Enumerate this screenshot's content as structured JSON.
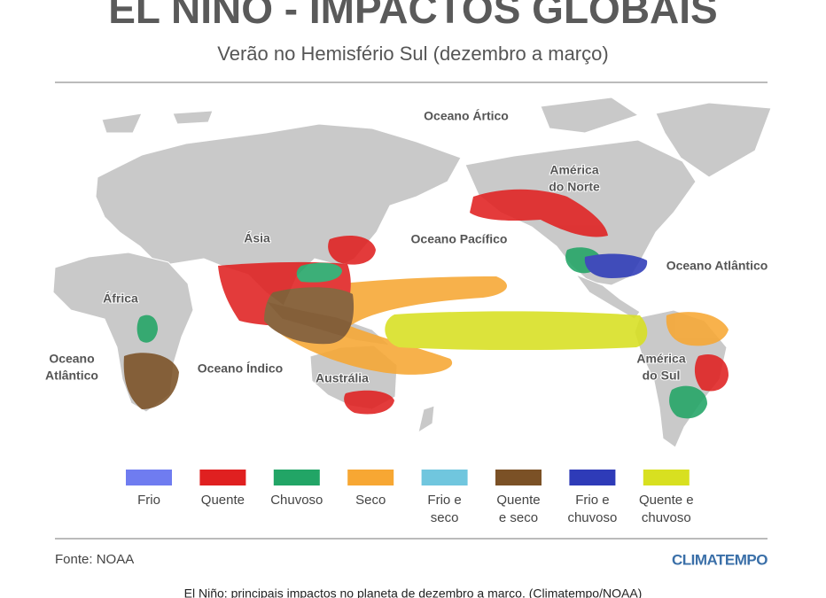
{
  "header": {
    "title": "EL NIÑO - IMPACTOS GLOBAIS",
    "subtitle": "Verão no Hemisfério Sul (dezembro a março)"
  },
  "map_labels": [
    {
      "lines": [
        "Oceano Ártico"
      ]
    },
    {
      "lines": [
        "América",
        "do Norte"
      ]
    },
    {
      "lines": [
        "Ásia"
      ]
    },
    {
      "lines": [
        "Oceano Pacífico"
      ]
    },
    {
      "lines": [
        "Oceano Atlântico"
      ]
    },
    {
      "lines": [
        "África"
      ]
    },
    {
      "lines": [
        "Oceano",
        "Atlântico"
      ]
    },
    {
      "lines": [
        "Oceano Índico"
      ]
    },
    {
      "lines": [
        "Austrália"
      ]
    },
    {
      "lines": [
        "América",
        "do Sul"
      ]
    }
  ],
  "legend": [
    {
      "lines": [
        "Frio"
      ],
      "color": "#6f7cf0"
    },
    {
      "lines": [
        "Quente"
      ],
      "color": "#e02020"
    },
    {
      "lines": [
        "Chuvoso"
      ],
      "color": "#22a566"
    },
    {
      "lines": [
        "Seco"
      ],
      "color": "#f7a733"
    },
    {
      "lines": [
        "Frio e",
        "seco"
      ],
      "color": "#70c6de"
    },
    {
      "lines": [
        "Quente",
        "e seco"
      ],
      "color": "#7b5126"
    },
    {
      "lines": [
        "Frio e",
        "chuvoso"
      ],
      "color": "#2e3bb8"
    },
    {
      "lines": [
        "Quente e",
        "chuvoso"
      ],
      "color": "#d8e020"
    }
  ],
  "footer": {
    "source": "Fonte: NOAA",
    "brand": "CLIMATEMPO",
    "caption": "El Niño: principais impactos no planeta de dezembro a março. (Climatempo/NOAA)"
  }
}
